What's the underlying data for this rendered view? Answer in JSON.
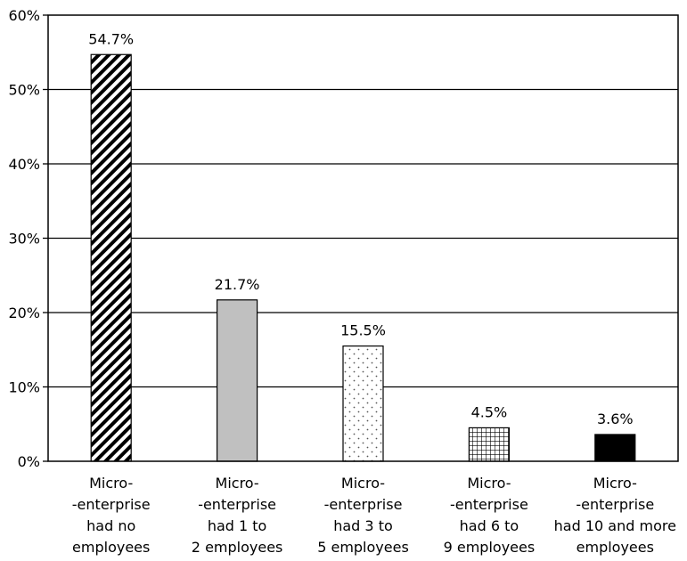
{
  "chart_data": {
    "type": "bar",
    "title": "",
    "xlabel": "",
    "ylabel": "",
    "ylim": [
      0,
      60
    ],
    "yticks": [
      0,
      10,
      20,
      30,
      40,
      50,
      60
    ],
    "ytick_labels": [
      "0%",
      "10%",
      "20%",
      "30%",
      "40%",
      "50%",
      "60%"
    ],
    "grid": true,
    "legend": "none",
    "categories": [
      [
        "Micro-",
        "-enterprise",
        "had no",
        "employees"
      ],
      [
        "Micro-",
        "-enterprise",
        "had 1 to",
        "2 employees"
      ],
      [
        "Micro-",
        "-enterprise",
        "had 3 to",
        "5 employees"
      ],
      [
        "Micro-",
        "-enterprise",
        "had 6 to",
        "9 employees"
      ],
      [
        "Micro-",
        "-enterprise",
        "had 10 and more",
        "employees"
      ]
    ],
    "values": [
      54.7,
      21.7,
      15.5,
      4.5,
      3.6
    ],
    "value_labels": [
      "54.7%",
      "21.7%",
      "15.5%",
      "4.5%",
      "3.6%"
    ],
    "bar_fills": [
      "diagonal-stripes",
      "solid-gray",
      "dots",
      "grid",
      "solid-black"
    ],
    "colors": {
      "gray": "#c0c0c0",
      "black": "#000000"
    }
  }
}
